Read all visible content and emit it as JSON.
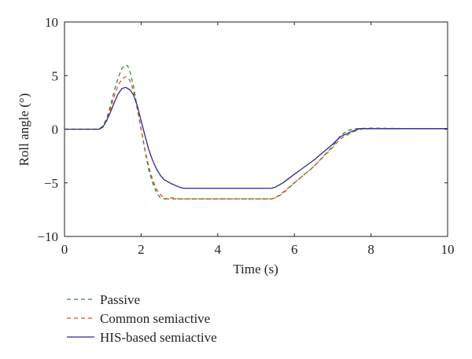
{
  "chart_data": {
    "type": "line",
    "title": "",
    "xlabel": "Time (s)",
    "ylabel": "Roll angle (°)",
    "xlim": [
      0,
      10
    ],
    "ylim": [
      -10,
      10
    ],
    "xticks": [
      "0",
      "2",
      "4",
      "6",
      "8",
      "10"
    ],
    "yticks": [
      "10",
      "5",
      "0",
      "−5",
      "−10"
    ],
    "grid": false,
    "legend_placement": "below",
    "series": [
      {
        "name": "Passive",
        "color": "#2e8b3a",
        "dash": "dashed",
        "x": [
          0,
          0.9,
          1.0,
          1.1,
          1.2,
          1.3,
          1.4,
          1.5,
          1.6,
          1.65,
          1.7,
          1.8,
          1.9,
          2.0,
          2.1,
          2.2,
          2.3,
          2.4,
          2.5,
          2.6,
          2.65,
          2.8,
          3.0,
          3.5,
          4.0,
          5.0,
          5.4,
          5.5,
          5.7,
          6.0,
          6.5,
          7.0,
          7.2,
          7.4,
          7.6,
          8.0,
          9.0,
          10.0
        ],
        "y": [
          0,
          0,
          0.3,
          1.0,
          2.2,
          3.6,
          4.8,
          5.7,
          6.0,
          5.9,
          5.5,
          4.0,
          2.0,
          0.0,
          -2.0,
          -3.8,
          -5.0,
          -5.9,
          -6.4,
          -6.5,
          -6.5,
          -6.4,
          -6.5,
          -6.5,
          -6.5,
          -6.5,
          -6.5,
          -6.4,
          -5.9,
          -5.0,
          -3.5,
          -1.6,
          -0.6,
          -0.1,
          0.05,
          0.1,
          0.05,
          0.05
        ]
      },
      {
        "name": "Common semiactive",
        "color": "#d2521d",
        "dash": "dashed",
        "x": [
          0,
          0.9,
          1.0,
          1.1,
          1.2,
          1.3,
          1.4,
          1.5,
          1.6,
          1.7,
          1.8,
          1.9,
          2.0,
          2.1,
          2.2,
          2.3,
          2.4,
          2.5,
          2.6,
          2.7,
          2.9,
          3.0,
          3.5,
          4.0,
          5.0,
          5.4,
          5.5,
          5.7,
          6.0,
          6.5,
          7.0,
          7.2,
          7.5,
          7.7,
          8.0,
          9.0,
          10.0
        ],
        "y": [
          0,
          0,
          0.2,
          0.9,
          1.9,
          3.1,
          4.1,
          4.7,
          4.9,
          4.6,
          3.6,
          1.9,
          0.0,
          -1.9,
          -3.5,
          -4.7,
          -5.6,
          -6.1,
          -6.4,
          -6.5,
          -6.5,
          -6.5,
          -6.5,
          -6.5,
          -6.5,
          -6.5,
          -6.4,
          -6.0,
          -5.0,
          -3.5,
          -1.7,
          -0.9,
          -0.3,
          0.0,
          0.05,
          0.05,
          0.05
        ]
      },
      {
        "name": "HIS-based semiactive",
        "color": "#2c2a8c",
        "dash": "solid",
        "x": [
          0,
          0.9,
          1.0,
          1.1,
          1.2,
          1.3,
          1.4,
          1.5,
          1.6,
          1.7,
          1.8,
          1.9,
          2.0,
          2.1,
          2.2,
          2.3,
          2.4,
          2.5,
          2.6,
          2.7,
          2.8,
          3.0,
          3.1,
          3.2,
          3.5,
          4.0,
          5.0,
          5.4,
          5.5,
          5.7,
          6.0,
          6.5,
          7.0,
          7.2,
          7.5,
          7.7,
          8.0,
          9.0,
          10.0
        ],
        "y": [
          0,
          0,
          0.2,
          0.8,
          1.6,
          2.5,
          3.3,
          3.8,
          3.9,
          3.7,
          3.2,
          2.2,
          0.8,
          -0.6,
          -1.9,
          -2.9,
          -3.7,
          -4.3,
          -4.7,
          -4.9,
          -5.1,
          -5.4,
          -5.5,
          -5.5,
          -5.5,
          -5.5,
          -5.5,
          -5.5,
          -5.4,
          -5.0,
          -4.2,
          -2.9,
          -1.4,
          -0.7,
          -0.2,
          0.05,
          0.05,
          0.05,
          0.05
        ]
      }
    ]
  }
}
